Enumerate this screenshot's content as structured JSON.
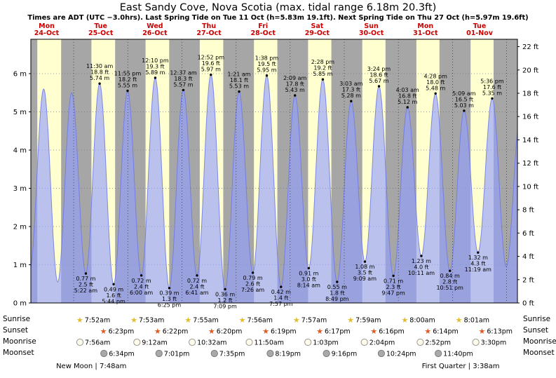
{
  "chart_data": {
    "type": "area",
    "title": "East Sandy Cove, Nova Scotia (max. tidal range 6.18m 20.3ft)",
    "subtitle": "Times are ADT (UTC −3.0hrs). Last Spring Tide on Tue 11 Oct (h=5.83m 19.1ft). Next Spring Tide on Thu 27 Oct (h=5.97m 19.6ft)",
    "ylabel_left": "meters",
    "ylabel_right": "feet",
    "ylim_m": [
      0,
      6.9
    ],
    "y_axis_left": {
      "unit": "m",
      "ticks": [
        0,
        1,
        2,
        3,
        4,
        5,
        6
      ]
    },
    "y_axis_right": {
      "unit": "ft",
      "ticks": [
        0,
        2,
        4,
        6,
        8,
        10,
        12,
        14,
        16,
        18,
        20,
        22
      ]
    },
    "days": [
      {
        "dow": "Mon",
        "date": "24-Oct"
      },
      {
        "dow": "Tue",
        "date": "25-Oct"
      },
      {
        "dow": "Wed",
        "date": "26-Oct"
      },
      {
        "dow": "Thu",
        "date": "27-Oct"
      },
      {
        "dow": "Fri",
        "date": "28-Oct"
      },
      {
        "dow": "Sat",
        "date": "29-Oct"
      },
      {
        "dow": "Sun",
        "date": "30-Oct"
      },
      {
        "dow": "Mon",
        "date": "31-Oct"
      },
      {
        "dow": "Tue",
        "date": "01-Nov"
      }
    ],
    "day0_daylight": {
      "sunrise": "7:51am",
      "sunset": "6:25pm"
    },
    "tide_events": [
      {
        "day": 0,
        "type": "low",
        "time": "4:33 am",
        "height_m": 0.85,
        "annotated": false
      },
      {
        "day": 0,
        "type": "high",
        "time": "10:41 am",
        "height_m": 5.6,
        "annotated": false
      },
      {
        "day": 0,
        "type": "low",
        "time": "4:55 pm",
        "height_m": 0.55,
        "annotated": false
      },
      {
        "day": 0,
        "type": "high",
        "time": "11:06 pm",
        "height_m": 5.5,
        "annotated": false
      },
      {
        "day": 1,
        "type": "low",
        "time": "5:22 am",
        "height_m": 0.77,
        "height_ft": "2.5 ft",
        "annotated": true
      },
      {
        "day": 1,
        "type": "high",
        "time": "11:30 am",
        "height_m": 5.74,
        "height_ft": "18.8 ft",
        "annotated": true
      },
      {
        "day": 1,
        "type": "low",
        "time": "5:44 pm",
        "height_m": 0.49,
        "height_ft": "1.6 ft",
        "annotated": true
      },
      {
        "day": 1,
        "type": "high",
        "time": "11:55 pm",
        "height_m": 5.55,
        "height_ft": "18.2 ft",
        "annotated": true
      },
      {
        "day": 2,
        "type": "low",
        "time": "6:00 am",
        "height_m": 0.72,
        "height_ft": "2.4 ft",
        "annotated": true
      },
      {
        "day": 2,
        "type": "high",
        "time": "12:10 pm",
        "height_m": 5.89,
        "height_ft": "19.3 ft",
        "annotated": true
      },
      {
        "day": 2,
        "type": "low",
        "time": "6:25 pm",
        "height_m": 0.39,
        "height_ft": "1.3 ft",
        "annotated": true
      },
      {
        "day": 3,
        "type": "high",
        "time": "12:37 am",
        "height_m": 5.57,
        "height_ft": "18.3 ft",
        "annotated": true
      },
      {
        "day": 3,
        "type": "low",
        "time": "6:41 am",
        "height_m": 0.72,
        "height_ft": "2.4 ft",
        "annotated": true
      },
      {
        "day": 3,
        "type": "high",
        "time": "12:52 pm",
        "height_m": 5.97,
        "height_ft": "19.6 ft",
        "annotated": true
      },
      {
        "day": 3,
        "type": "low",
        "time": "7:09 pm",
        "height_m": 0.36,
        "height_ft": "1.2 ft",
        "annotated": true
      },
      {
        "day": 4,
        "type": "high",
        "time": "1:21 am",
        "height_m": 5.53,
        "height_ft": "18.1 ft",
        "annotated": true
      },
      {
        "day": 4,
        "type": "low",
        "time": "7:26 am",
        "height_m": 0.79,
        "height_ft": "2.6 ft",
        "annotated": true
      },
      {
        "day": 4,
        "type": "high",
        "time": "1:38 pm",
        "height_m": 5.95,
        "height_ft": "19.5 ft",
        "annotated": true
      },
      {
        "day": 4,
        "type": "low",
        "time": "7:57 pm",
        "height_m": 0.42,
        "height_ft": "1.4 ft",
        "annotated": true
      },
      {
        "day": 5,
        "type": "high",
        "time": "2:09 am",
        "height_m": 5.43,
        "height_ft": "17.8 ft",
        "annotated": true
      },
      {
        "day": 5,
        "type": "low",
        "time": "8:14 am",
        "height_m": 0.91,
        "height_ft": "3.0 ft",
        "annotated": true
      },
      {
        "day": 5,
        "type": "high",
        "time": "2:28 pm",
        "height_m": 5.85,
        "height_ft": "19.2 ft",
        "annotated": true
      },
      {
        "day": 5,
        "type": "low",
        "time": "8:49 pm",
        "height_m": 0.55,
        "height_ft": "1.8 ft",
        "annotated": true
      },
      {
        "day": 6,
        "type": "high",
        "time": "3:03 am",
        "height_m": 5.28,
        "height_ft": "17.3 ft",
        "annotated": true
      },
      {
        "day": 6,
        "type": "low",
        "time": "9:09 am",
        "height_m": 1.08,
        "height_ft": "3.5 ft",
        "annotated": true
      },
      {
        "day": 6,
        "type": "high",
        "time": "3:24 pm",
        "height_m": 5.67,
        "height_ft": "18.6 ft",
        "annotated": true
      },
      {
        "day": 6,
        "type": "low",
        "time": "9:47 pm",
        "height_m": 0.71,
        "height_ft": "2.3 ft",
        "annotated": true
      },
      {
        "day": 7,
        "type": "high",
        "time": "4:03 am",
        "height_m": 5.12,
        "height_ft": "16.8 ft",
        "annotated": true
      },
      {
        "day": 7,
        "type": "low",
        "time": "10:11 am",
        "height_m": 1.23,
        "height_ft": "4.0 ft",
        "annotated": true
      },
      {
        "day": 7,
        "type": "high",
        "time": "4:28 pm",
        "height_m": 5.48,
        "height_ft": "18.0 ft",
        "annotated": true
      },
      {
        "day": 7,
        "type": "low",
        "time": "10:51 pm",
        "height_m": 0.84,
        "height_ft": "2.8 ft",
        "annotated": true
      },
      {
        "day": 8,
        "type": "high",
        "time": "5:09 am",
        "height_m": 5.03,
        "height_ft": "16.5 ft",
        "annotated": true
      },
      {
        "day": 8,
        "type": "low",
        "time": "11:19 am",
        "height_m": 1.32,
        "height_ft": "4.3 ft",
        "annotated": true
      },
      {
        "day": 8,
        "type": "high",
        "time": "5:36 pm",
        "height_m": 5.35,
        "height_ft": "17.6 ft",
        "annotated": true
      },
      {
        "day": 8,
        "type": "low",
        "time": "11:50 pm",
        "height_m": 0.95,
        "annotated": false
      },
      {
        "day": 9,
        "type": "high",
        "time": "6:05 am",
        "height_m": 4.9,
        "annotated": false
      }
    ],
    "colors": {
      "night_band": "#a6a6a6",
      "day_band": "#ffffcf",
      "tide_fill": "rgba(147,159,252,0.65)",
      "tide_stroke": "rgba(108,120,235,0.85)",
      "day_label": "#cc0000",
      "annotation": "#000000",
      "sunrise_star": "#e2bc2a",
      "sunset_star": "#de5a22",
      "moonrise_fill": "#fffdea",
      "moonrise_stroke": "#979797",
      "moonset_fill": "#a9a9a9",
      "moonset_stroke": "#7d7d7d"
    },
    "legend_position": "none",
    "grid": true
  },
  "astro": {
    "row_labels": [
      "Sunrise",
      "Sunset",
      "Moonrise",
      "Moonset"
    ],
    "sunrise": [
      {
        "day": 1,
        "time": "7:52am"
      },
      {
        "day": 2,
        "time": "7:53am"
      },
      {
        "day": 3,
        "time": "7:55am"
      },
      {
        "day": 4,
        "time": "7:56am"
      },
      {
        "day": 5,
        "time": "7:57am"
      },
      {
        "day": 6,
        "time": "7:59am"
      },
      {
        "day": 7,
        "time": "8:00am"
      },
      {
        "day": 8,
        "time": "8:01am"
      }
    ],
    "sunset": [
      {
        "day": 1,
        "time": "6:23pm"
      },
      {
        "day": 2,
        "time": "6:22pm"
      },
      {
        "day": 3,
        "time": "6:20pm"
      },
      {
        "day": 4,
        "time": "6:19pm"
      },
      {
        "day": 5,
        "time": "6:17pm"
      },
      {
        "day": 6,
        "time": "6:16pm"
      },
      {
        "day": 7,
        "time": "6:14pm"
      },
      {
        "day": 8,
        "time": "6:13pm"
      }
    ],
    "moonrise": [
      {
        "day": 1,
        "time": "7:56am"
      },
      {
        "day": 2,
        "time": "9:12am"
      },
      {
        "day": 3,
        "time": "10:32am"
      },
      {
        "day": 4,
        "time": "11:50am"
      },
      {
        "day": 5,
        "time": "1:03pm"
      },
      {
        "day": 6,
        "time": "2:04pm"
      },
      {
        "day": 7,
        "time": "2:52pm"
      },
      {
        "day": 8,
        "time": "3:30pm"
      }
    ],
    "moonset": [
      {
        "day": 1,
        "time": "6:34pm"
      },
      {
        "day": 2,
        "time": "7:01pm"
      },
      {
        "day": 3,
        "time": "7:35pm"
      },
      {
        "day": 4,
        "time": "8:19pm"
      },
      {
        "day": 5,
        "time": "9:16pm"
      },
      {
        "day": 6,
        "time": "10:24pm"
      },
      {
        "day": 7,
        "time": "11:40pm"
      }
    ],
    "phases": [
      {
        "day": 1,
        "label": "New Moon",
        "time": "7:48am"
      },
      {
        "day": 8,
        "label": "First Quarter",
        "time": "3:38am"
      }
    ]
  }
}
